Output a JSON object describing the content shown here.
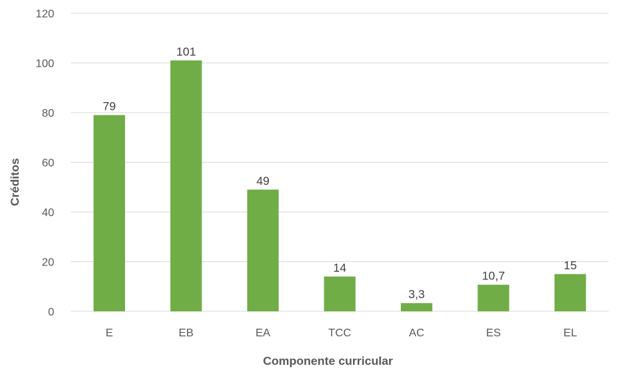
{
  "chart_data": {
    "type": "bar",
    "categories": [
      "E",
      "EB",
      "EA",
      "TCC",
      "AC",
      "ES",
      "EL"
    ],
    "values": [
      79,
      101,
      49,
      14,
      3.3,
      10.7,
      15
    ],
    "data_labels": [
      "79",
      "101",
      "49",
      "14",
      "3,3",
      "10,7",
      "15"
    ],
    "xlabel": "Componente curricular",
    "ylabel": "Créditos",
    "ylim": [
      0,
      120
    ],
    "yticks": [
      0,
      20,
      40,
      60,
      80,
      100,
      120
    ],
    "grid": true,
    "bar_color": "#70ad47"
  }
}
